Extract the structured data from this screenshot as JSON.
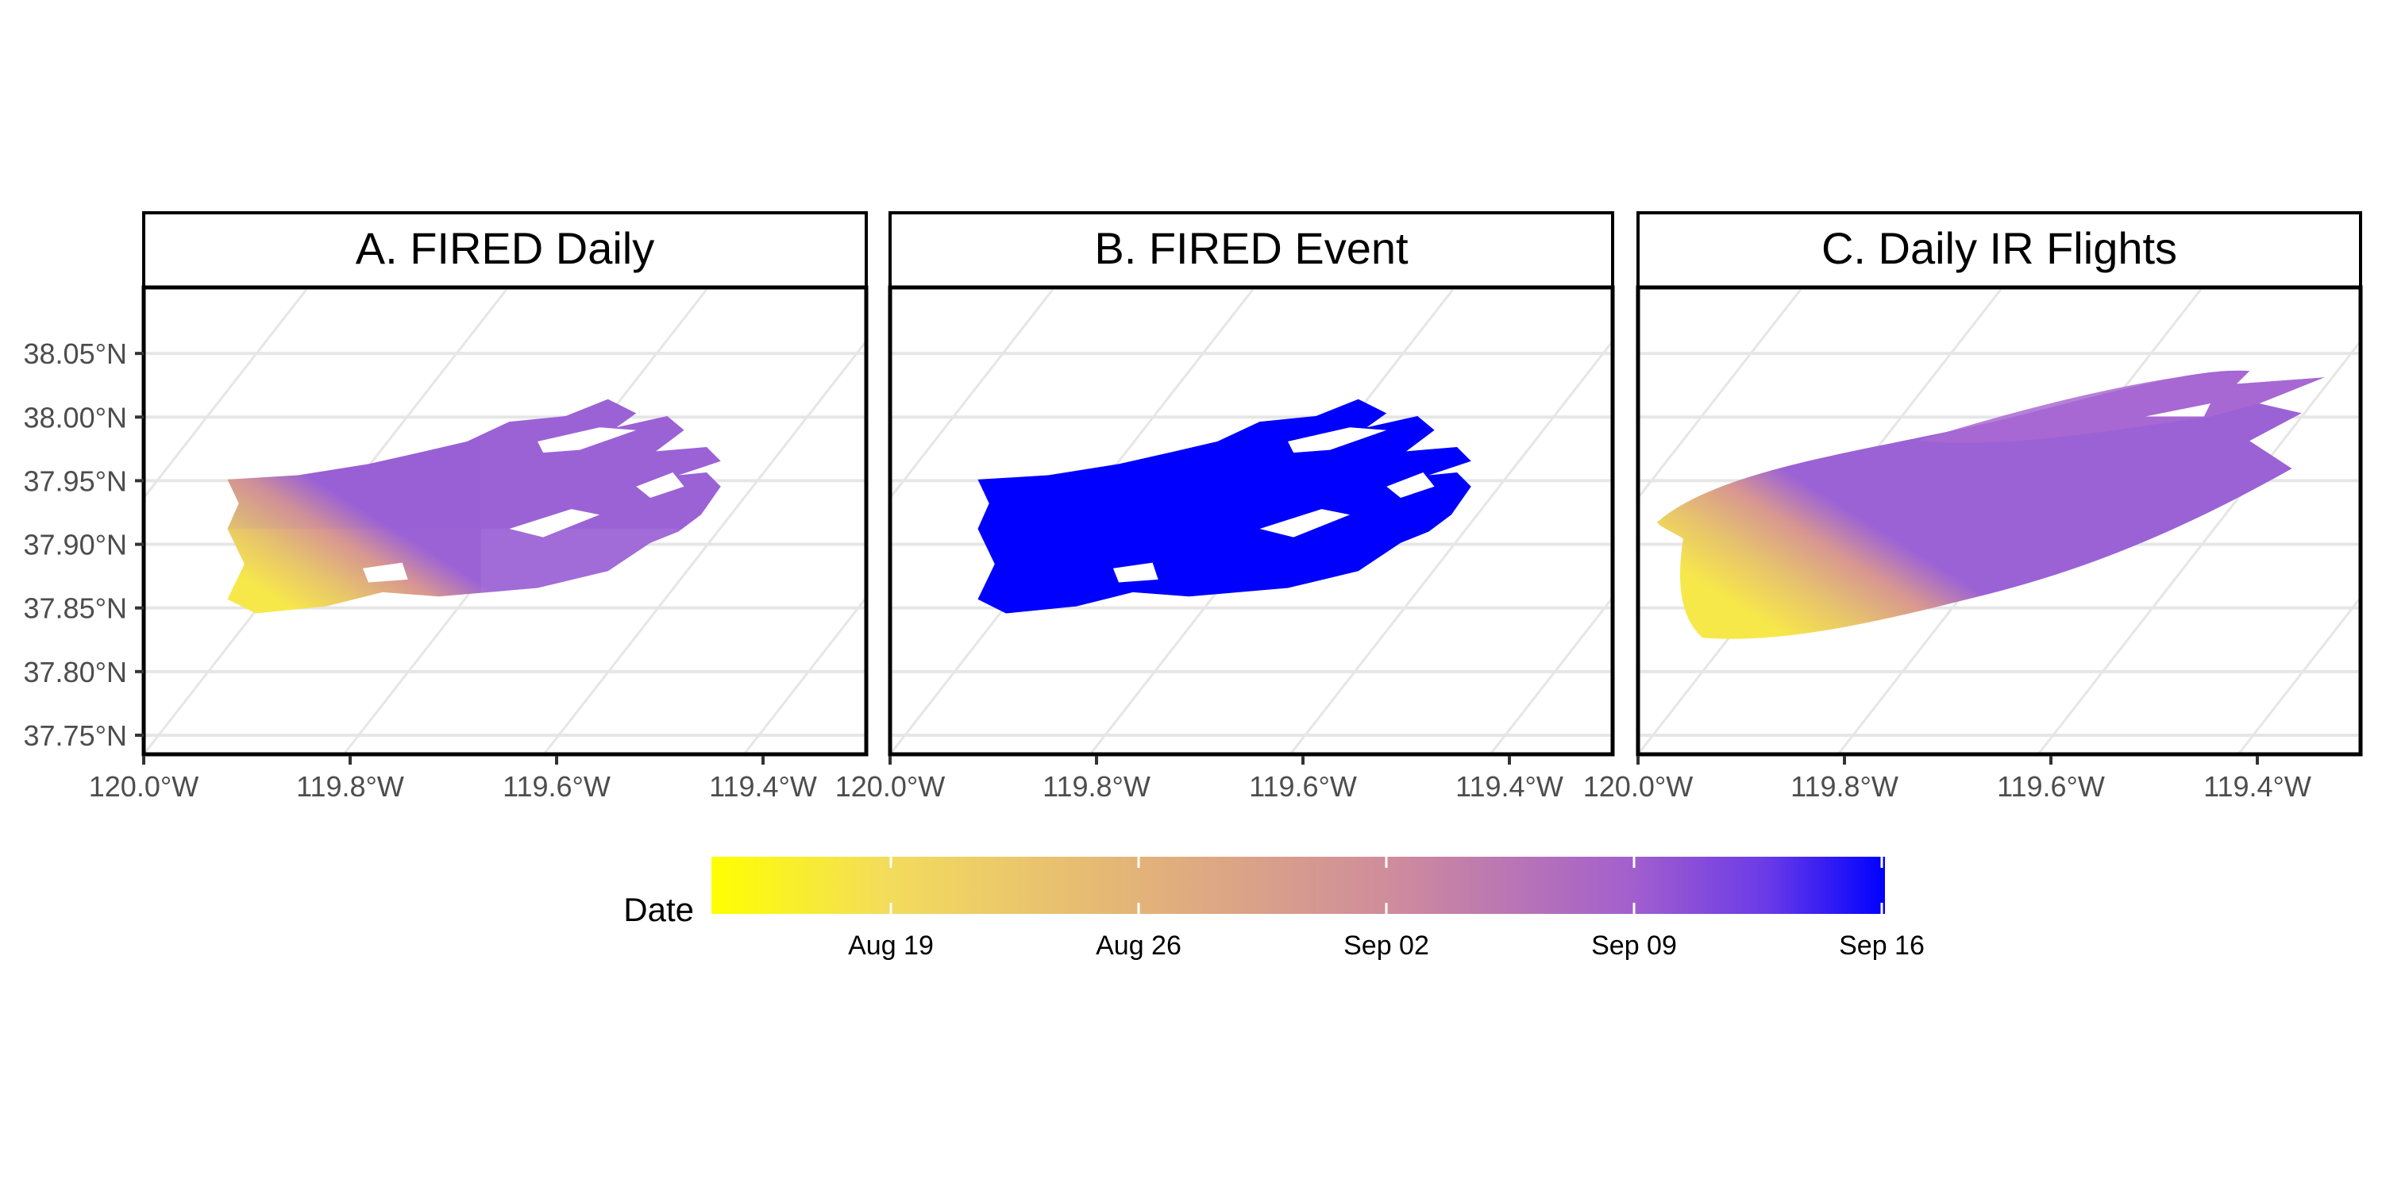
{
  "panels": [
    {
      "id": "A",
      "title": "A. FIRED Daily",
      "style": "daily"
    },
    {
      "id": "B",
      "title": "B. FIRED Event",
      "style": "event"
    },
    {
      "id": "C",
      "title": "C. Daily IR Flights",
      "style": "smooth"
    }
  ],
  "axes": {
    "lon_ticks": [
      "120.0°W",
      "119.8°W",
      "119.6°W",
      "119.4°W"
    ],
    "lon_values": [
      -120.0,
      -119.8,
      -119.6,
      -119.4
    ],
    "lat_ticks": [
      "38.05°N",
      "38.00°N",
      "37.95°N",
      "37.90°N",
      "37.85°N",
      "37.80°N",
      "37.75°N"
    ],
    "lat_values": [
      38.05,
      38.0,
      37.95,
      37.9,
      37.85,
      37.8,
      37.75
    ],
    "lon_range": [
      -120.0,
      -119.3
    ],
    "lat_range": [
      37.735,
      38.1
    ],
    "grid": true
  },
  "legend": {
    "title": "Date",
    "ticks": [
      "Aug 19",
      "Aug 26",
      "Sep 02",
      "Sep 09",
      "Sep 16"
    ],
    "colors": [
      "#ffff00",
      "#e8c46e",
      "#d79690",
      "#a56ad0",
      "#0000ff"
    ],
    "position": "bottom"
  },
  "colors": {
    "event_fill": "#0000ff",
    "grid": "#e6e6e6",
    "frame": "#000000"
  }
}
